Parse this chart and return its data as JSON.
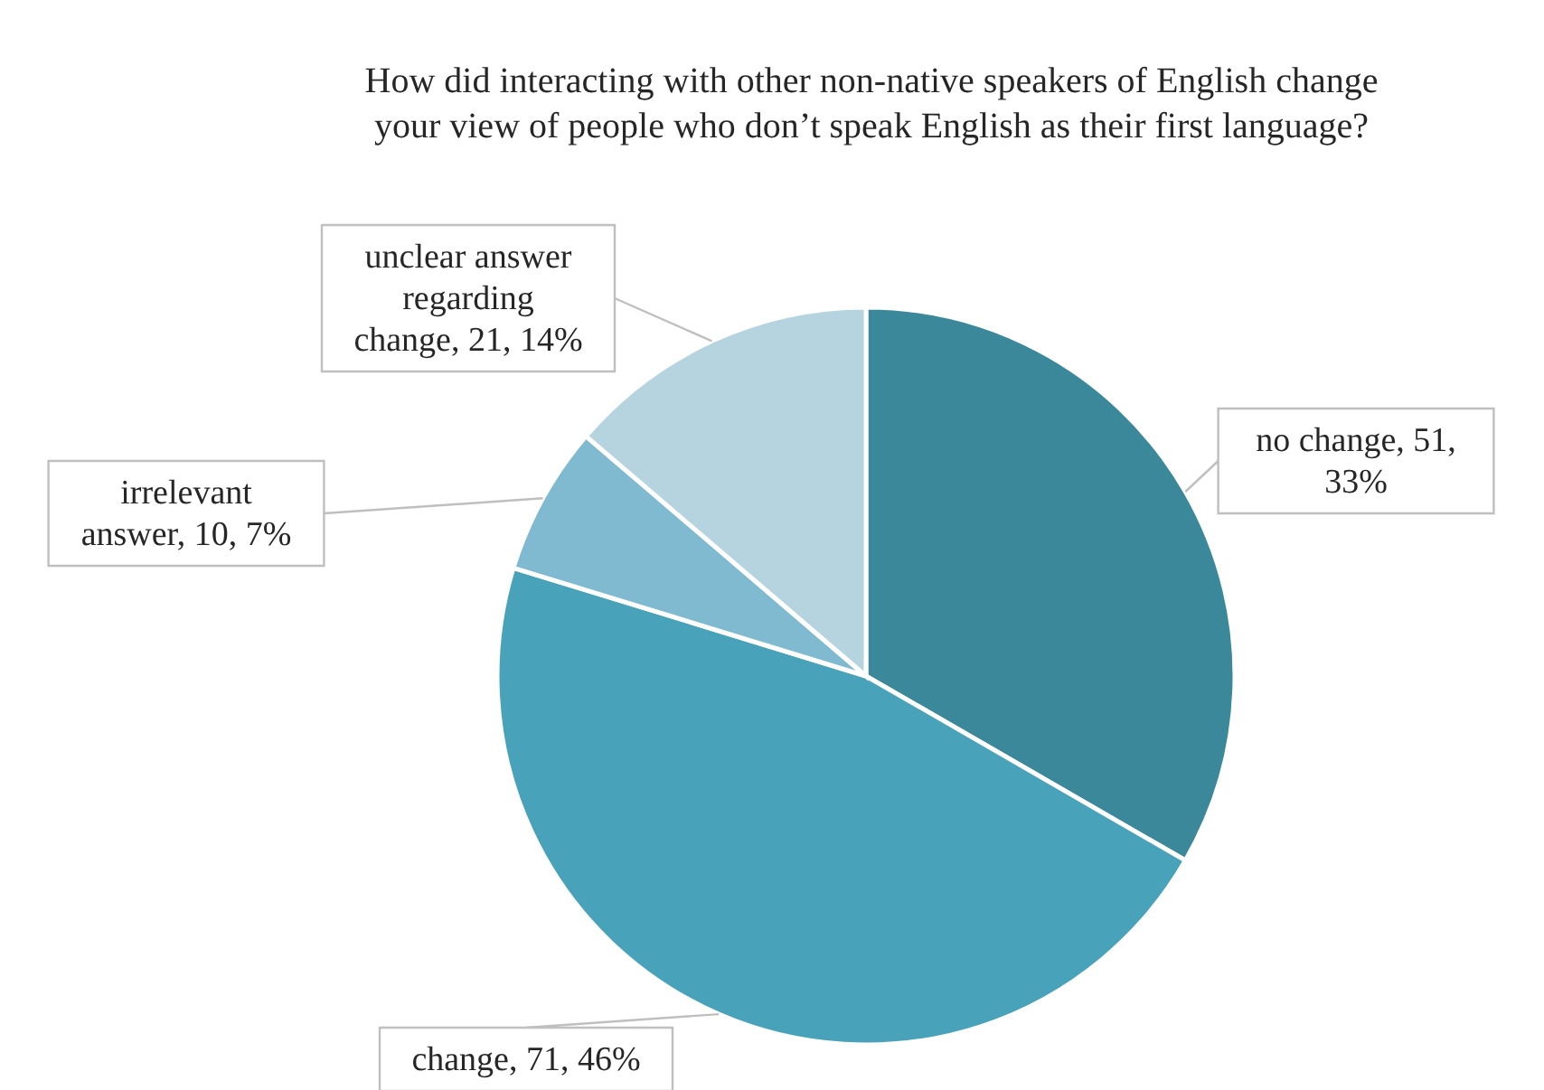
{
  "chart_data": {
    "type": "pie",
    "title": "How did interacting with other non-native speakers of English change your view of people who don’t speak English as their first language?",
    "categories": [
      "no change",
      "change",
      "irrelevant answer",
      "unclear answer regarding change"
    ],
    "values": [
      51,
      71,
      10,
      21
    ],
    "colors": [
      "#3a8899",
      "#48a2b9",
      "#7fbad0",
      "#b5d4df"
    ],
    "value_labels": [
      "51, 33%",
      "71, 46%",
      "10, 7%",
      "21, 14%"
    ]
  }
}
